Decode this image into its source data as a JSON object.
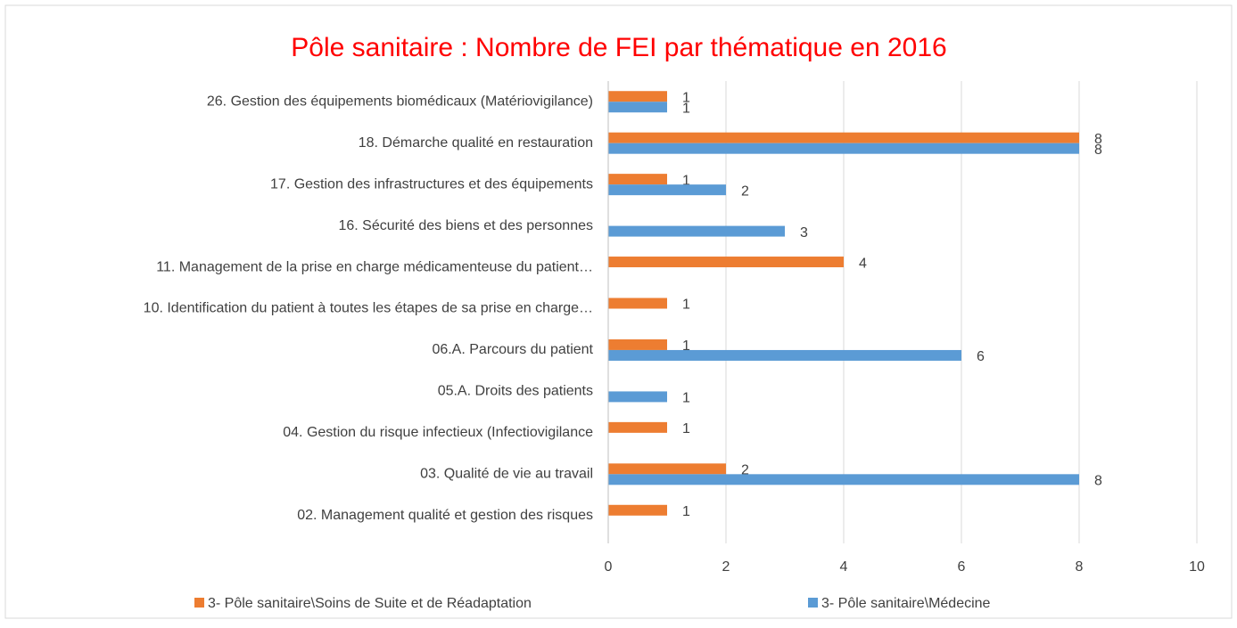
{
  "chart_data": {
    "type": "bar",
    "orientation": "horizontal",
    "title": "Pôle sanitaire : Nombre de FEI par thématique en 2016",
    "categories": [
      "26. Gestion des équipements biomédicaux (Matériovigilance)",
      "18. Démarche qualité en restauration",
      "17. Gestion des infrastructures et des équipements",
      "16. Sécurité des biens et des personnes",
      "11. Management de la prise en charge médicamenteuse du patient…",
      "10. Identification du patient à toutes les étapes de sa prise en charge…",
      "06.A. Parcours du patient",
      "05.A. Droits des patients",
      "04. Gestion du risque infectieux (Infectiovigilance",
      "03. Qualité de vie au travail",
      "02. Management qualité et gestion des risques"
    ],
    "series": [
      {
        "name": "3- Pôle sanitaire\\Soins de Suite et de Réadaptation",
        "color": "#ed7d31",
        "values": [
          1,
          8,
          1,
          null,
          4,
          1,
          1,
          null,
          1,
          2,
          1
        ]
      },
      {
        "name": "3- Pôle sanitaire\\Médecine",
        "color": "#5b9bd5",
        "values": [
          1,
          8,
          2,
          3,
          null,
          null,
          6,
          1,
          null,
          8,
          null
        ]
      }
    ],
    "xlim": [
      0,
      10
    ],
    "xticks": [
      0,
      2,
      4,
      6,
      8,
      10
    ],
    "grid": true,
    "legend": "bottom",
    "title_color": "#ff0000"
  }
}
